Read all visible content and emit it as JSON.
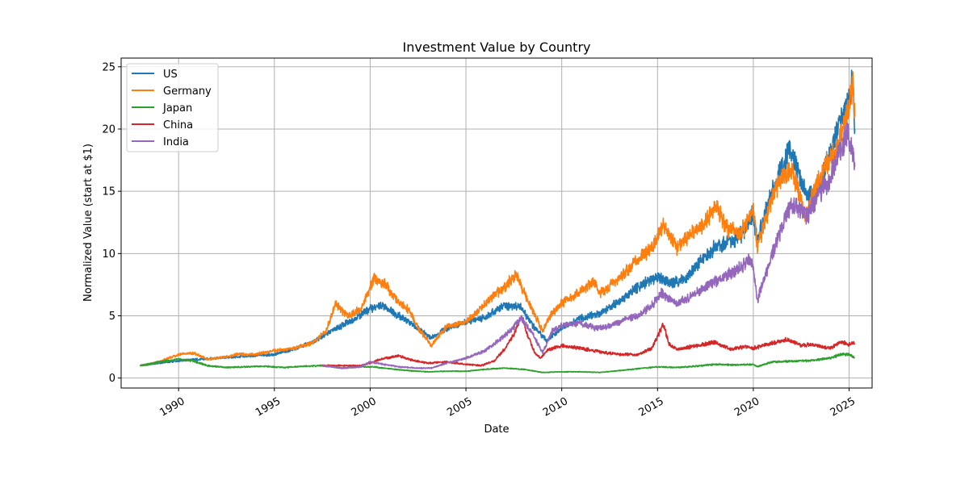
{
  "chart_data": {
    "type": "line",
    "title": "Investment Value by Country",
    "xlabel": "Date",
    "ylabel": "Normalized Value (start at $1)",
    "xlim": [
      1987.0,
      2026.2
    ],
    "ylim": [
      -0.8,
      25.7
    ],
    "x_ticks": [
      1990,
      1995,
      2000,
      2005,
      2010,
      2015,
      2020,
      2025
    ],
    "x_tick_labels": [
      "1990",
      "1995",
      "2000",
      "2005",
      "2010",
      "2015",
      "2020",
      "2025"
    ],
    "y_ticks": [
      0,
      5,
      10,
      15,
      20,
      25
    ],
    "y_tick_labels": [
      "0",
      "5",
      "10",
      "15",
      "20",
      "25"
    ],
    "grid": true,
    "legend_position": "top-left",
    "series": [
      {
        "name": "US",
        "color": "#1f77b4",
        "x": [
          1988.0,
          1989.0,
          1990.0,
          1991.0,
          1992.0,
          1993.0,
          1994.0,
          1995.0,
          1996.0,
          1997.0,
          1998.0,
          1999.0,
          2000.0,
          2000.7,
          2001.5,
          2002.5,
          2003.2,
          2004.0,
          2005.0,
          2006.0,
          2007.0,
          2007.8,
          2008.5,
          2009.2,
          2010.0,
          2011.0,
          2012.0,
          2013.0,
          2014.0,
          2015.0,
          2015.7,
          2016.5,
          2017.0,
          2018.0,
          2018.9,
          2019.5,
          2020.0,
          2020.2,
          2021.0,
          2021.9,
          2022.8,
          2023.5,
          2024.0,
          2024.5,
          2025.0,
          2025.2,
          2025.3
        ],
        "y": [
          1.0,
          1.2,
          1.4,
          1.5,
          1.6,
          1.7,
          1.8,
          1.9,
          2.3,
          2.9,
          3.8,
          4.6,
          5.6,
          5.8,
          5.0,
          4.0,
          3.2,
          4.0,
          4.5,
          4.9,
          5.8,
          5.8,
          4.2,
          3.0,
          4.0,
          4.8,
          5.2,
          6.2,
          7.3,
          8.2,
          7.6,
          8.0,
          9.0,
          10.5,
          11.0,
          11.8,
          13.2,
          11.0,
          15.0,
          18.5,
          14.5,
          15.5,
          18.0,
          20.5,
          22.5,
          24.0,
          20.0
        ]
      },
      {
        "name": "Germany",
        "color": "#ff7f0e",
        "x": [
          1988.0,
          1989.0,
          1990.0,
          1990.8,
          1991.5,
          1992.5,
          1993.0,
          1994.0,
          1995.0,
          1996.0,
          1997.0,
          1997.7,
          1998.2,
          1998.8,
          1999.5,
          2000.2,
          2000.8,
          2001.5,
          2002.0,
          2002.5,
          2003.2,
          2004.0,
          2005.0,
          2006.0,
          2007.0,
          2007.6,
          2008.3,
          2009.0,
          2009.5,
          2010.0,
          2011.0,
          2011.7,
          2012.0,
          2013.0,
          2014.0,
          2014.7,
          2015.3,
          2016.0,
          2016.7,
          2017.5,
          2018.0,
          2018.7,
          2019.3,
          2020.0,
          2020.2,
          2021.0,
          2021.6,
          2022.0,
          2022.7,
          2023.3,
          2024.0,
          2024.5,
          2024.9,
          2025.2,
          2025.3
        ],
        "y": [
          1.0,
          1.3,
          1.9,
          2.0,
          1.5,
          1.7,
          1.9,
          1.9,
          2.2,
          2.4,
          2.8,
          3.8,
          6.0,
          5.0,
          5.5,
          8.0,
          7.5,
          6.0,
          5.5,
          4.0,
          2.6,
          4.2,
          4.5,
          6.0,
          7.3,
          8.3,
          6.0,
          3.8,
          5.2,
          6.0,
          7.0,
          7.8,
          6.8,
          8.0,
          9.5,
          10.5,
          12.3,
          10.5,
          11.5,
          12.5,
          13.8,
          12.0,
          11.5,
          13.5,
          10.5,
          14.5,
          16.5,
          16.8,
          13.0,
          15.5,
          17.5,
          19.0,
          21.0,
          24.0,
          21.0
        ]
      },
      {
        "name": "Japan",
        "color": "#2ca02c",
        "x": [
          1988.0,
          1989.0,
          1990.0,
          1990.7,
          1991.5,
          1992.5,
          1993.5,
          1994.5,
          1995.5,
          1996.5,
          1997.5,
          1998.5,
          1999.5,
          2000.2,
          2001.0,
          2002.0,
          2003.0,
          2004.0,
          2005.0,
          2006.0,
          2007.0,
          2008.0,
          2009.0,
          2010.0,
          2011.0,
          2012.0,
          2013.0,
          2014.0,
          2015.0,
          2016.0,
          2017.0,
          2018.0,
          2019.0,
          2020.0,
          2020.2,
          2021.0,
          2022.0,
          2023.0,
          2024.0,
          2024.6,
          2025.0,
          2025.3
        ],
        "y": [
          1.0,
          1.3,
          1.5,
          1.4,
          1.0,
          0.85,
          0.9,
          0.95,
          0.85,
          0.95,
          1.0,
          0.8,
          0.9,
          0.9,
          0.75,
          0.6,
          0.5,
          0.55,
          0.55,
          0.7,
          0.8,
          0.7,
          0.45,
          0.5,
          0.5,
          0.45,
          0.6,
          0.75,
          0.9,
          0.85,
          0.95,
          1.1,
          1.05,
          1.1,
          0.9,
          1.3,
          1.35,
          1.4,
          1.6,
          1.9,
          1.9,
          1.6
        ]
      },
      {
        "name": "China",
        "color": "#d62728",
        "x": [
          1997.5,
          1998.5,
          1999.5,
          2000.0,
          2000.5,
          2001.5,
          2002.0,
          2003.0,
          2004.0,
          2005.0,
          2005.8,
          2006.5,
          2007.0,
          2007.5,
          2007.9,
          2008.2,
          2008.6,
          2008.9,
          2009.3,
          2010.0,
          2011.0,
          2012.0,
          2013.0,
          2014.0,
          2014.7,
          2015.3,
          2015.6,
          2016.0,
          2017.0,
          2018.0,
          2018.8,
          2019.5,
          2020.0,
          2021.0,
          2021.8,
          2022.5,
          2023.0,
          2024.0,
          2024.6,
          2025.0,
          2025.3
        ],
        "y": [
          1.0,
          1.0,
          1.0,
          1.2,
          1.5,
          1.8,
          1.5,
          1.2,
          1.3,
          1.1,
          1.0,
          1.4,
          2.3,
          3.5,
          5.0,
          3.5,
          2.0,
          1.6,
          2.3,
          2.6,
          2.4,
          2.1,
          1.9,
          1.9,
          2.4,
          4.3,
          2.7,
          2.3,
          2.6,
          2.9,
          2.3,
          2.5,
          2.4,
          2.8,
          3.1,
          2.6,
          2.7,
          2.4,
          2.9,
          2.7,
          2.8
        ]
      },
      {
        "name": "India",
        "color": "#9467bd",
        "x": [
          1997.5,
          1998.5,
          1999.5,
          2000.0,
          2000.7,
          2001.5,
          2002.5,
          2003.2,
          2004.0,
          2005.0,
          2006.0,
          2006.7,
          2007.3,
          2007.9,
          2008.5,
          2009.0,
          2009.5,
          2010.0,
          2011.0,
          2011.8,
          2012.5,
          2013.5,
          2014.0,
          2014.7,
          2015.2,
          2016.0,
          2016.7,
          2017.5,
          2018.3,
          2019.0,
          2019.8,
          2020.0,
          2020.2,
          2021.0,
          2021.7,
          2022.0,
          2022.8,
          2023.3,
          2024.0,
          2024.4,
          2024.9,
          2025.2,
          2025.3
        ],
        "y": [
          1.0,
          0.8,
          0.9,
          1.3,
          1.1,
          0.9,
          0.8,
          0.8,
          1.2,
          1.6,
          2.2,
          3.0,
          3.8,
          4.8,
          3.5,
          2.0,
          3.8,
          4.2,
          4.4,
          4.0,
          4.2,
          4.8,
          5.0,
          5.8,
          6.8,
          6.0,
          6.5,
          7.3,
          8.0,
          8.5,
          9.5,
          9.0,
          6.2,
          10.0,
          13.0,
          14.0,
          13.0,
          14.5,
          16.0,
          18.0,
          19.5,
          18.0,
          17.0
        ]
      }
    ]
  }
}
